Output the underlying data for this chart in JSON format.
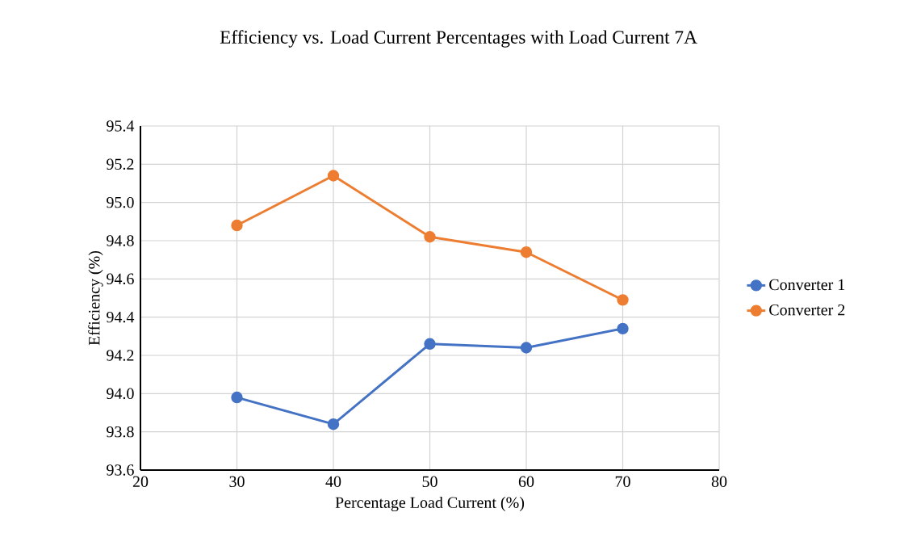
{
  "chart_data": {
    "type": "line",
    "title": "Efficiency vs. Load Current Percentages with Load Current 7A",
    "xlabel": "Percentage Load Current (%)",
    "ylabel": "Efficiency (%)",
    "x": [
      30,
      40,
      50,
      60,
      70
    ],
    "series": [
      {
        "name": "Converter 1",
        "color": "#4472c4",
        "values": [
          93.98,
          93.84,
          94.26,
          94.24,
          94.34
        ]
      },
      {
        "name": "Converter 2",
        "color": "#ed7d31",
        "values": [
          94.88,
          95.14,
          94.82,
          94.74,
          94.49
        ]
      }
    ],
    "xlim": [
      20,
      80
    ],
    "xticks": [
      20,
      30,
      40,
      50,
      60,
      70,
      80
    ],
    "ylim": [
      93.6,
      95.4
    ],
    "yticks": [
      93.6,
      93.8,
      {
        "value": 94,
        "label": "94.0"
      },
      94.2,
      94.4,
      94.6,
      94.8,
      {
        "value": 95,
        "label": "95.0"
      },
      95.2,
      95.4
    ],
    "grid": true,
    "legend": "right",
    "marker": "circle",
    "line_style": "solid"
  }
}
